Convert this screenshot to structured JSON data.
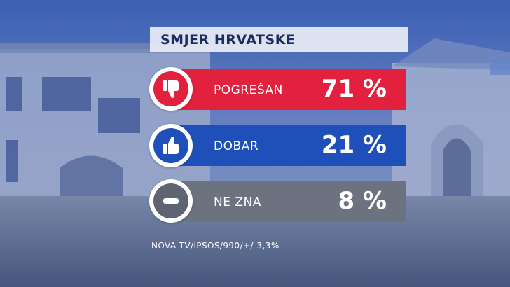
{
  "title": "SMJER HRVATSKE",
  "source": "NOVA TV/IPSOS/990/+/-3,3%",
  "colors": {
    "negative": "#e2213e",
    "positive": "#1f4fb8",
    "neutral": "#6d7281"
  },
  "chart_data": {
    "type": "bar",
    "title": "SMJER HRVATSKE",
    "categories": [
      "POGREŠAN",
      "DOBAR",
      "NE ZNA"
    ],
    "values": [
      71,
      21,
      8
    ],
    "value_labels": [
      "71 %",
      "21 %",
      "8 %"
    ],
    "icons": [
      "thumbs-down-icon",
      "thumbs-up-icon",
      "minus-icon"
    ],
    "ylim": [
      0,
      100
    ]
  }
}
